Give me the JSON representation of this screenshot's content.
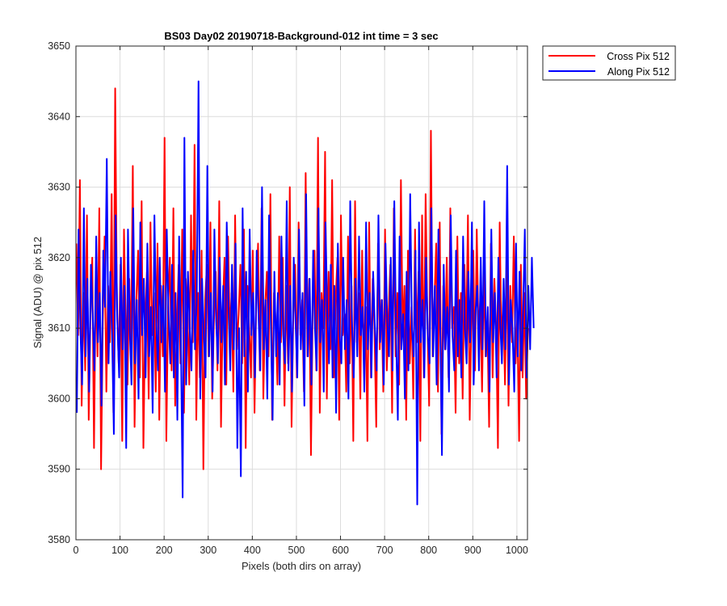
{
  "chart_data": {
    "type": "line",
    "title": "BS03 Day02 20190718-Background-012 int time = 3 sec",
    "xlabel": "Pixels (both dirs on array)",
    "ylabel": "Signal (ADU) @ pix 512",
    "xlim": [
      0,
      1024
    ],
    "ylim": [
      3580,
      3650
    ],
    "xticks": [
      0,
      100,
      200,
      300,
      400,
      500,
      600,
      700,
      800,
      900,
      1000
    ],
    "yticks": [
      3580,
      3590,
      3600,
      3610,
      3620,
      3630,
      3640,
      3650
    ],
    "grid": true,
    "legend_position": "outside-top-right",
    "series": [
      {
        "name": "Cross Pix 512",
        "color": "#ff0000",
        "x_start": 1,
        "x_step": 4,
        "values": [
          3622,
          3609,
          3631,
          3599,
          3615,
          3604,
          3626,
          3597,
          3612,
          3620,
          3593,
          3618,
          3606,
          3627,
          3590,
          3611,
          3623,
          3601,
          3616,
          3608,
          3629,
          3598,
          3644,
          3613,
          3605,
          3619,
          3594,
          3624,
          3610,
          3602,
          3617,
          3607,
          3633,
          3596,
          3614,
          3621,
          3603,
          3628,
          3593,
          3611,
          3618,
          3600,
          3625,
          3609,
          3615,
          3601,
          3622,
          3597,
          3616,
          3606,
          3637,
          3594,
          3613,
          3620,
          3604,
          3627,
          3599,
          3610,
          3619,
          3605,
          3624,
          3598,
          3617,
          3612,
          3602,
          3626,
          3608,
          3636,
          3597,
          3615,
          3603,
          3621,
          3590,
          3614,
          3619,
          3606,
          3625,
          3600,
          3611,
          3618,
          3604,
          3628,
          3596,
          3613,
          3620,
          3602,
          3623,
          3609,
          3615,
          3601,
          3626,
          3607,
          3612,
          3619,
          3605,
          3624,
          3593,
          3616,
          3610,
          3603,
          3621,
          3598,
          3614,
          3622,
          3604,
          3627,
          3600,
          3613,
          3618,
          3606,
          3629,
          3597,
          3615,
          3611,
          3602,
          3623,
          3608,
          3620,
          3599,
          3616,
          3605,
          3630,
          3596,
          3612,
          3619,
          3603,
          3625,
          3609,
          3614,
          3601,
          3632,
          3606,
          3617,
          3592,
          3613,
          3621,
          3604,
          3637,
          3598,
          3615,
          3610,
          3635,
          3600,
          3618,
          3607,
          3631,
          3603,
          3614,
          3620,
          3597,
          3626,
          3609,
          3612,
          3601,
          3623,
          3605,
          3616,
          3594,
          3628,
          3608,
          3615,
          3600,
          3621,
          3606,
          3613,
          3594,
          3625,
          3603,
          3617,
          3610,
          3596,
          3622,
          3607,
          3614,
          3601,
          3624,
          3604,
          3612,
          3619,
          3598,
          3627,
          3606,
          3615,
          3602,
          3631,
          3609,
          3616,
          3597,
          3621,
          3605,
          3613,
          3600,
          3624,
          3608,
          3618,
          3594,
          3626,
          3603,
          3629,
          3611,
          3599,
          3638,
          3606,
          3614,
          3622,
          3601,
          3625,
          3595,
          3616,
          3607,
          3620,
          3603,
          3627,
          3610,
          3613,
          3598,
          3623,
          3605,
          3615,
          3600,
          3619,
          3608,
          3626,
          3597,
          3612,
          3621,
          3604,
          3624,
          3609,
          3614,
          3601,
          3618,
          3606,
          3611,
          3596,
          3622,
          3603,
          3617,
          3610,
          3593,
          3625,
          3607,
          3614,
          3602,
          3620,
          3599,
          3616,
          3608,
          3623,
          3605,
          3612,
          3594,
          3619,
          3603,
          3615,
          3600,
          3610
        ]
      },
      {
        "name": "Along Pix 512",
        "color": "#0000ff",
        "x_start": 2,
        "x_step": 4,
        "values": [
          3598,
          3624,
          3610,
          3602,
          3627,
          3606,
          3617,
          3601,
          3619,
          3612,
          3604,
          3623,
          3608,
          3615,
          3599,
          3621,
          3613,
          3634,
          3605,
          3618,
          3609,
          3595,
          3626,
          3611,
          3603,
          3620,
          3607,
          3616,
          3593,
          3624,
          3610,
          3602,
          3627,
          3605,
          3614,
          3600,
          3625,
          3609,
          3617,
          3603,
          3622,
          3606,
          3613,
          3598,
          3626,
          3611,
          3604,
          3620,
          3608,
          3616,
          3601,
          3624,
          3612,
          3605,
          3619,
          3603,
          3615,
          3597,
          3623,
          3609,
          3586,
          3637,
          3602,
          3618,
          3610,
          3604,
          3621,
          3607,
          3614,
          3645,
          3600,
          3617,
          3609,
          3603,
          3633,
          3606,
          3615,
          3601,
          3624,
          3611,
          3605,
          3620,
          3608,
          3616,
          3602,
          3625,
          3613,
          3604,
          3619,
          3607,
          3622,
          3593,
          3610,
          3589,
          3627,
          3606,
          3618,
          3601,
          3624,
          3609,
          3615,
          3603,
          3621,
          3612,
          3604,
          3630,
          3607,
          3614,
          3600,
          3626,
          3611,
          3597,
          3618,
          3606,
          3615,
          3602,
          3623,
          3609,
          3605,
          3628,
          3604,
          3616,
          3601,
          3620,
          3611,
          3603,
          3624,
          3607,
          3615,
          3599,
          3629,
          3606,
          3617,
          3602,
          3621,
          3610,
          3604,
          3627,
          3608,
          3614,
          3601,
          3625,
          3612,
          3605,
          3619,
          3603,
          3616,
          3598,
          3622,
          3609,
          3605,
          3620,
          3607,
          3614,
          3600,
          3628,
          3611,
          3603,
          3617,
          3606,
          3623,
          3609,
          3613,
          3601,
          3625,
          3607,
          3615,
          3603,
          3618,
          3610,
          3604,
          3626,
          3608,
          3614,
          3602,
          3622,
          3611,
          3606,
          3620,
          3604,
          3628,
          3609,
          3597,
          3623,
          3607,
          3612,
          3600,
          3618,
          3604,
          3629,
          3610,
          3606,
          3621,
          3585,
          3625,
          3608,
          3614,
          3603,
          3620,
          3609,
          3605,
          3627,
          3606,
          3616,
          3602,
          3624,
          3611,
          3592,
          3619,
          3607,
          3613,
          3601,
          3626,
          3609,
          3604,
          3621,
          3606,
          3614,
          3603,
          3623,
          3610,
          3605,
          3618,
          3608,
          3625,
          3602,
          3612,
          3616,
          3604,
          3620,
          3607,
          3628,
          3606,
          3613,
          3601,
          3624,
          3608,
          3615,
          3603,
          3620,
          3611,
          3605,
          3617,
          3607,
          3633,
          3602,
          3614,
          3610,
          3601,
          3622,
          3606,
          3618,
          3604,
          3612,
          3624,
          3603,
          3616,
          3607,
          3620,
          3610
        ]
      }
    ]
  }
}
